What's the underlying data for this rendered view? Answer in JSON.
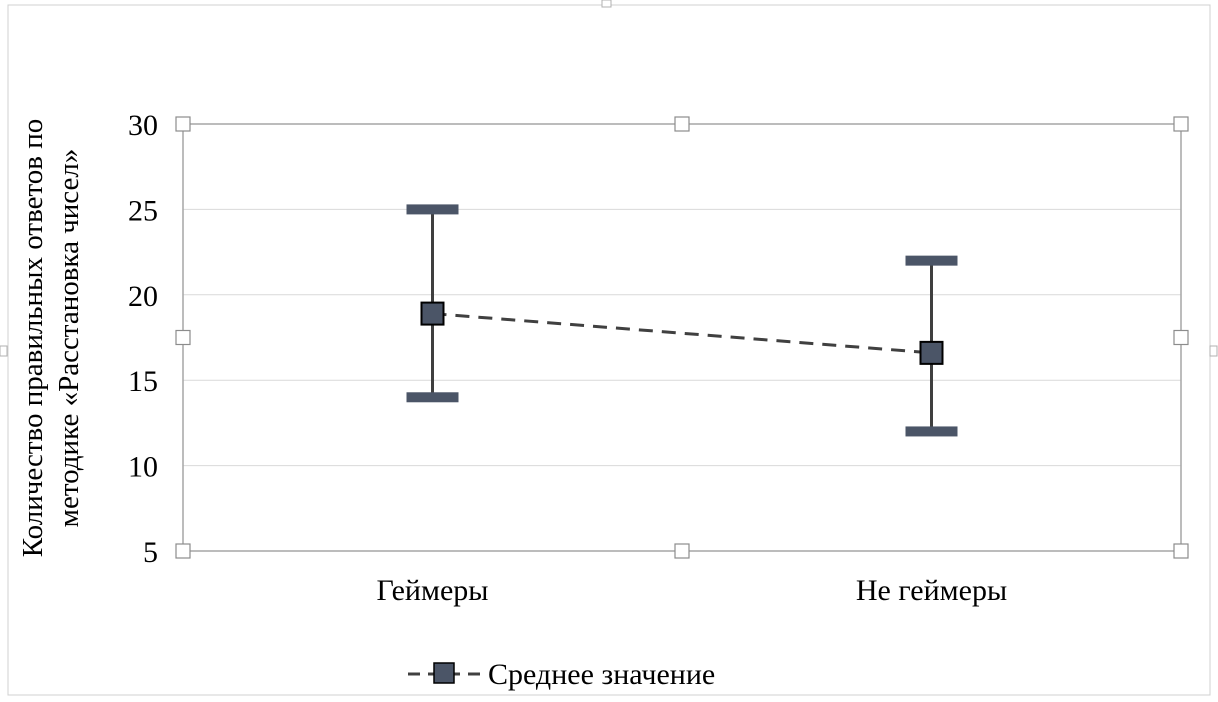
{
  "chart_data": {
    "type": "line",
    "categories": [
      "Геймеры",
      "Не геймеры"
    ],
    "series": [
      {
        "name": "Среднее значение",
        "values": [
          18.9,
          16.6
        ],
        "error_low": [
          14,
          12
        ],
        "error_high": [
          25,
          22
        ],
        "line_style": "dashed",
        "marker": "square"
      }
    ],
    "ylabel_lines": [
      "Количество правильных ответов по",
      "методике «Расстановка чисел»"
    ],
    "xlabel": "",
    "ylim": [
      5,
      30
    ],
    "yticks": [
      5,
      10,
      15,
      20,
      25,
      30
    ],
    "grid": true,
    "legend_position": "bottom"
  },
  "colors": {
    "marker_fill": "#4b5567",
    "error_bar": "#3f3f3f",
    "error_cap": "#4b5567",
    "dash_line": "#404040",
    "gridline": "#d9d9d9",
    "plot_border": "#a6a6a6"
  }
}
